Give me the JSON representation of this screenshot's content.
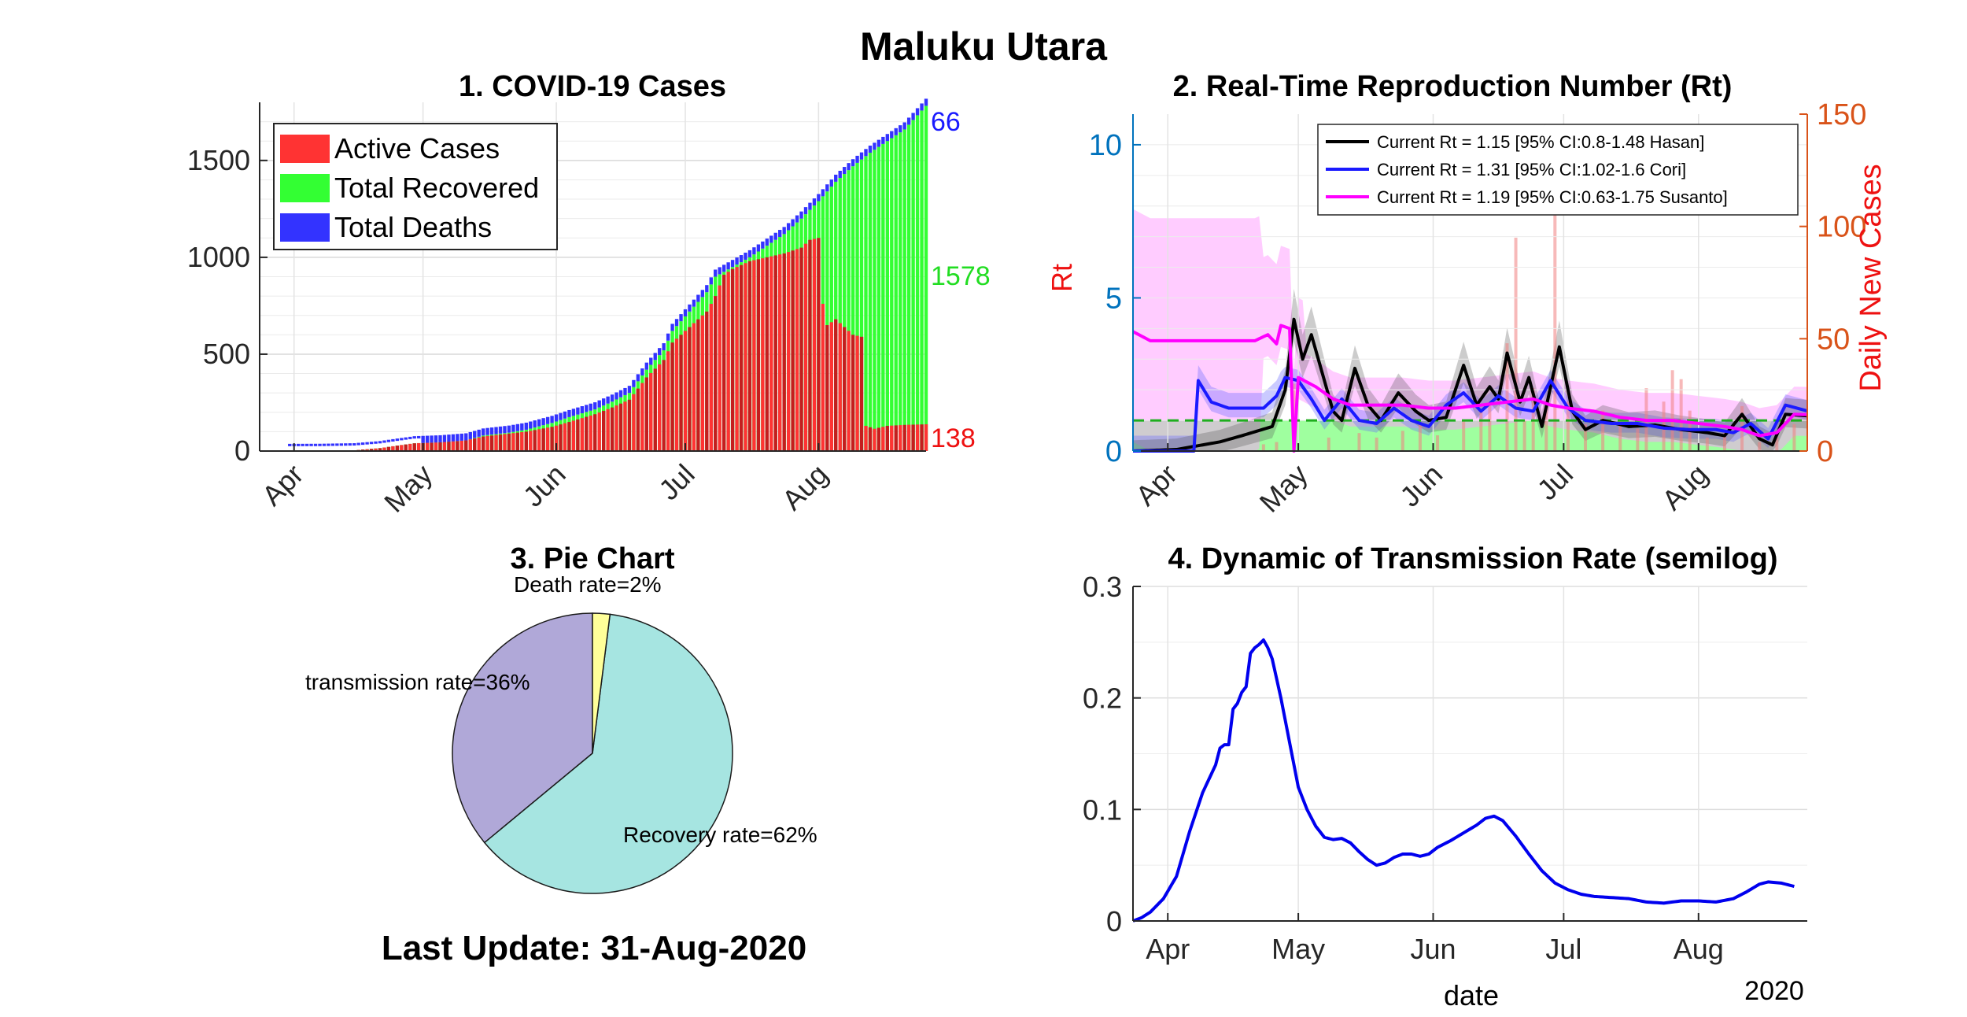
{
  "header": {
    "title": "Maluku Utara"
  },
  "footer": {
    "last_update": "Last Update: 31-Aug-2020"
  },
  "colors": {
    "active": "#ff3333",
    "active_dark": "#c41e1e",
    "recovered": "#33ff33",
    "deaths": "#3333ff",
    "hasan": "#000000",
    "cori": "#1a1aff",
    "susanto": "#ff00ff",
    "orange_axis": "#d95319",
    "blue_axis": "#0072bd",
    "pie_transmission": "#b0a8d8",
    "pie_recovery": "#a6e5e1",
    "pie_death": "#ffff99",
    "transmission_line": "#0000ee"
  },
  "chart_data": [
    {
      "id": "cases",
      "type": "bar",
      "title": "1. COVID-19 Cases",
      "xlabel": "",
      "ylabel": "",
      "xlim": [
        0,
        155
      ],
      "ylim": [
        0,
        1800
      ],
      "yticks": [
        0,
        500,
        1000,
        1500
      ],
      "xtick_labels": [
        "Apr",
        "May",
        "Jun",
        "Jul",
        "Aug"
      ],
      "xtick_days": [
        8,
        38,
        69,
        99,
        130
      ],
      "legend": [
        "Active Cases",
        "Total Recovered",
        "Total Deaths"
      ],
      "legend_position": "top-left",
      "end_labels": {
        "deaths": "66",
        "recovered": "1578",
        "active": "138"
      },
      "cumulative_knots": [
        [
          0,
          0
        ],
        [
          14,
          1
        ],
        [
          22,
          4
        ],
        [
          28,
          15
        ],
        [
          32,
          28
        ],
        [
          36,
          40
        ],
        [
          42,
          45
        ],
        [
          48,
          55
        ],
        [
          52,
          80
        ],
        [
          58,
          95
        ],
        [
          62,
          110
        ],
        [
          68,
          145
        ],
        [
          72,
          175
        ],
        [
          78,
          215
        ],
        [
          82,
          255
        ],
        [
          86,
          300
        ],
        [
          90,
          420
        ],
        [
          94,
          520
        ],
        [
          96,
          620
        ],
        [
          100,
          720
        ],
        [
          104,
          820
        ],
        [
          106,
          900
        ],
        [
          110,
          950
        ],
        [
          114,
          1000
        ],
        [
          118,
          1060
        ],
        [
          122,
          1120
        ],
        [
          126,
          1200
        ],
        [
          130,
          1290
        ],
        [
          134,
          1390
        ],
        [
          138,
          1470
        ],
        [
          142,
          1540
        ],
        [
          146,
          1600
        ],
        [
          150,
          1660
        ],
        [
          155,
          1782
        ]
      ],
      "active_knots": [
        [
          0,
          0
        ],
        [
          14,
          1
        ],
        [
          22,
          4
        ],
        [
          28,
          15
        ],
        [
          32,
          28
        ],
        [
          36,
          40
        ],
        [
          42,
          45
        ],
        [
          48,
          55
        ],
        [
          52,
          75
        ],
        [
          58,
          90
        ],
        [
          62,
          100
        ],
        [
          68,
          125
        ],
        [
          72,
          150
        ],
        [
          78,
          190
        ],
        [
          82,
          225
        ],
        [
          86,
          265
        ],
        [
          90,
          380
        ],
        [
          94,
          470
        ],
        [
          96,
          560
        ],
        [
          100,
          640
        ],
        [
          104,
          720
        ],
        [
          106,
          800
        ],
        [
          108,
          910
        ],
        [
          110,
          940
        ],
        [
          114,
          980
        ],
        [
          118,
          1000
        ],
        [
          122,
          1020
        ],
        [
          126,
          1050
        ],
        [
          128,
          1090
        ],
        [
          130,
          1100
        ],
        [
          131,
          760
        ],
        [
          132,
          650
        ],
        [
          134,
          680
        ],
        [
          136,
          640
        ],
        [
          138,
          600
        ],
        [
          140,
          590
        ],
        [
          141,
          130
        ],
        [
          143,
          115
        ],
        [
          146,
          130
        ],
        [
          150,
          135
        ],
        [
          155,
          138
        ]
      ],
      "death_knots": [
        [
          0,
          0
        ],
        [
          30,
          1
        ],
        [
          52,
          4
        ],
        [
          70,
          10
        ],
        [
          90,
          20
        ],
        [
          104,
          32
        ],
        [
          118,
          42
        ],
        [
          130,
          50
        ],
        [
          142,
          58
        ],
        [
          155,
          66
        ]
      ]
    },
    {
      "id": "rt",
      "type": "line",
      "title": "2. Real-Time Reproduction Number (Rt)",
      "ylabel": "Rt",
      "ylabel_right": "Daily New Cases",
      "xlim": [
        0,
        155
      ],
      "ylim": [
        0,
        11
      ],
      "ylim_right": [
        0,
        150
      ],
      "yticks": [
        0,
        5,
        10
      ],
      "yticks_right": [
        0,
        50,
        100,
        150
      ],
      "xtick_labels": [
        "Apr",
        "May",
        "Jun",
        "Jul",
        "Aug"
      ],
      "xtick_days": [
        8,
        38,
        69,
        99,
        130
      ],
      "threshold": 1,
      "legend_position": "top-right",
      "series": [
        {
          "name": "Current Rt = 1.15 [95% CI:0.8-1.48 Hasan]",
          "knots": [
            [
              0,
              0
            ],
            [
              10,
              0.05
            ],
            [
              20,
              0.3
            ],
            [
              25,
              0.5
            ],
            [
              32,
              0.8
            ],
            [
              35,
              2.0
            ],
            [
              37,
              4.3
            ],
            [
              39,
              3.0
            ],
            [
              41,
              3.8
            ],
            [
              44,
              2.3
            ],
            [
              46,
              1.3
            ],
            [
              48,
              1.0
            ],
            [
              51,
              2.7
            ],
            [
              54,
              1.5
            ],
            [
              57,
              1.0
            ],
            [
              61,
              1.9
            ],
            [
              65,
              1.3
            ],
            [
              68,
              1.0
            ],
            [
              72,
              1.1
            ],
            [
              76,
              2.8
            ],
            [
              79,
              1.5
            ],
            [
              82,
              2.1
            ],
            [
              84,
              1.7
            ],
            [
              86,
              3.2
            ],
            [
              89,
              1.6
            ],
            [
              91,
              2.4
            ],
            [
              94,
              0.8
            ],
            [
              98,
              3.4
            ],
            [
              101,
              1.3
            ],
            [
              104,
              0.7
            ],
            [
              108,
              1.0
            ],
            [
              114,
              0.8
            ],
            [
              120,
              0.85
            ],
            [
              126,
              0.7
            ],
            [
              132,
              0.6
            ],
            [
              136,
              0.5
            ],
            [
              140,
              1.2
            ],
            [
              144,
              0.4
            ],
            [
              147,
              0.2
            ],
            [
              150,
              1.2
            ],
            [
              155,
              1.15
            ]
          ]
        },
        {
          "name": "Current Rt = 1.31 [95% CI:1.02-1.6 Cori]",
          "knots": [
            [
              0,
              0
            ],
            [
              14,
              0
            ],
            [
              15,
              2.3
            ],
            [
              18,
              1.6
            ],
            [
              22,
              1.4
            ],
            [
              30,
              1.4
            ],
            [
              33,
              1.8
            ],
            [
              35,
              2.4
            ],
            [
              38,
              2.3
            ],
            [
              41,
              1.7
            ],
            [
              44,
              1.0
            ],
            [
              48,
              1.7
            ],
            [
              52,
              1.0
            ],
            [
              56,
              0.9
            ],
            [
              60,
              1.4
            ],
            [
              64,
              1.0
            ],
            [
              68,
              0.8
            ],
            [
              72,
              1.5
            ],
            [
              76,
              1.9
            ],
            [
              80,
              1.3
            ],
            [
              84,
              1.8
            ],
            [
              88,
              1.4
            ],
            [
              92,
              1.3
            ],
            [
              96,
              2.3
            ],
            [
              100,
              1.4
            ],
            [
              104,
              1.0
            ],
            [
              110,
              0.9
            ],
            [
              116,
              0.9
            ],
            [
              122,
              0.75
            ],
            [
              128,
              0.7
            ],
            [
              134,
              0.7
            ],
            [
              138,
              0.6
            ],
            [
              142,
              0.9
            ],
            [
              146,
              0.4
            ],
            [
              150,
              1.5
            ],
            [
              155,
              1.31
            ]
          ]
        },
        {
          "name": "Current Rt = 1.19 [95% CI:0.63-1.75 Susanto]",
          "knots": [
            [
              0,
              3.9
            ],
            [
              4,
              3.6
            ],
            [
              10,
              3.6
            ],
            [
              20,
              3.6
            ],
            [
              28,
              3.6
            ],
            [
              31,
              3.8
            ],
            [
              33,
              3.5
            ],
            [
              34,
              4.1
            ],
            [
              36,
              4.0
            ],
            [
              37,
              0
            ],
            [
              38,
              2.4
            ],
            [
              42,
              2.1
            ],
            [
              46,
              1.7
            ],
            [
              50,
              1.5
            ],
            [
              56,
              1.5
            ],
            [
              62,
              1.5
            ],
            [
              68,
              1.4
            ],
            [
              74,
              1.4
            ],
            [
              80,
              1.5
            ],
            [
              86,
              1.6
            ],
            [
              92,
              1.7
            ],
            [
              96,
              1.5
            ],
            [
              100,
              1.4
            ],
            [
              106,
              1.3
            ],
            [
              112,
              1.1
            ],
            [
              118,
              1.0
            ],
            [
              124,
              1.0
            ],
            [
              130,
              0.9
            ],
            [
              136,
              0.8
            ],
            [
              140,
              0.7
            ],
            [
              144,
              0.5
            ],
            [
              148,
              0.6
            ],
            [
              152,
              1.2
            ],
            [
              155,
              1.19
            ]
          ]
        }
      ],
      "daily_cases_spikes": [
        [
          30,
          3
        ],
        [
          33,
          4
        ],
        [
          37,
          30
        ],
        [
          45,
          6
        ],
        [
          52,
          8
        ],
        [
          56,
          6
        ],
        [
          62,
          9
        ],
        [
          66,
          12
        ],
        [
          70,
          7
        ],
        [
          76,
          14
        ],
        [
          80,
          18
        ],
        [
          82,
          22
        ],
        [
          86,
          48
        ],
        [
          88,
          95
        ],
        [
          90,
          14
        ],
        [
          92,
          28
        ],
        [
          95,
          20
        ],
        [
          97,
          130
        ],
        [
          100,
          22
        ],
        [
          104,
          12
        ],
        [
          108,
          18
        ],
        [
          112,
          14
        ],
        [
          116,
          10
        ],
        [
          118,
          28
        ],
        [
          122,
          22
        ],
        [
          124,
          36
        ],
        [
          126,
          32
        ],
        [
          128,
          18
        ],
        [
          132,
          6
        ],
        [
          136,
          8
        ],
        [
          140,
          20
        ],
        [
          144,
          4
        ],
        [
          148,
          6
        ],
        [
          152,
          12
        ]
      ]
    },
    {
      "id": "pie",
      "type": "pie",
      "title": "3. Pie Chart",
      "slices": [
        {
          "label": "transmission rate=36%",
          "value": 36
        },
        {
          "label": "Recovery rate=62%",
          "value": 62
        },
        {
          "label": "Death rate=2%",
          "value": 2
        }
      ]
    },
    {
      "id": "transmission",
      "type": "line",
      "title": "4. Dynamic of Transmission Rate (semilog)",
      "xlabel": "date",
      "year_label": "2020",
      "xlim": [
        0,
        155
      ],
      "ylim": [
        0,
        0.3
      ],
      "yticks": [
        0,
        0.1,
        0.2,
        0.3
      ],
      "ytick_labels": [
        "0",
        "0.1",
        "0.2",
        "0.3"
      ],
      "xtick_labels": [
        "Apr",
        "May",
        "Jun",
        "Jul",
        "Aug"
      ],
      "xtick_days": [
        8,
        38,
        69,
        99,
        130
      ],
      "knots": [
        [
          0,
          0
        ],
        [
          2,
          0.003
        ],
        [
          4,
          0.008
        ],
        [
          7,
          0.02
        ],
        [
          10,
          0.04
        ],
        [
          13,
          0.08
        ],
        [
          16,
          0.115
        ],
        [
          19,
          0.14
        ],
        [
          20,
          0.155
        ],
        [
          21,
          0.158
        ],
        [
          22,
          0.158
        ],
        [
          23,
          0.19
        ],
        [
          24,
          0.195
        ],
        [
          25,
          0.205
        ],
        [
          26,
          0.21
        ],
        [
          27,
          0.24
        ],
        [
          28,
          0.245
        ],
        [
          29,
          0.248
        ],
        [
          30,
          0.252
        ],
        [
          31,
          0.245
        ],
        [
          32,
          0.235
        ],
        [
          34,
          0.2
        ],
        [
          36,
          0.16
        ],
        [
          38,
          0.12
        ],
        [
          40,
          0.1
        ],
        [
          42,
          0.085
        ],
        [
          44,
          0.075
        ],
        [
          46,
          0.073
        ],
        [
          48,
          0.074
        ],
        [
          50,
          0.07
        ],
        [
          52,
          0.062
        ],
        [
          54,
          0.055
        ],
        [
          56,
          0.05
        ],
        [
          58,
          0.052
        ],
        [
          60,
          0.057
        ],
        [
          62,
          0.06
        ],
        [
          64,
          0.06
        ],
        [
          66,
          0.058
        ],
        [
          68,
          0.06
        ],
        [
          70,
          0.066
        ],
        [
          73,
          0.072
        ],
        [
          76,
          0.079
        ],
        [
          79,
          0.086
        ],
        [
          81,
          0.092
        ],
        [
          83,
          0.094
        ],
        [
          85,
          0.09
        ],
        [
          88,
          0.076
        ],
        [
          91,
          0.06
        ],
        [
          94,
          0.045
        ],
        [
          97,
          0.034
        ],
        [
          100,
          0.028
        ],
        [
          103,
          0.024
        ],
        [
          106,
          0.022
        ],
        [
          110,
          0.021
        ],
        [
          114,
          0.02
        ],
        [
          118,
          0.017
        ],
        [
          122,
          0.016
        ],
        [
          126,
          0.018
        ],
        [
          130,
          0.018
        ],
        [
          134,
          0.017
        ],
        [
          138,
          0.02
        ],
        [
          141,
          0.026
        ],
        [
          144,
          0.033
        ],
        [
          146,
          0.035
        ],
        [
          149,
          0.034
        ],
        [
          152,
          0.031
        ]
      ]
    }
  ]
}
